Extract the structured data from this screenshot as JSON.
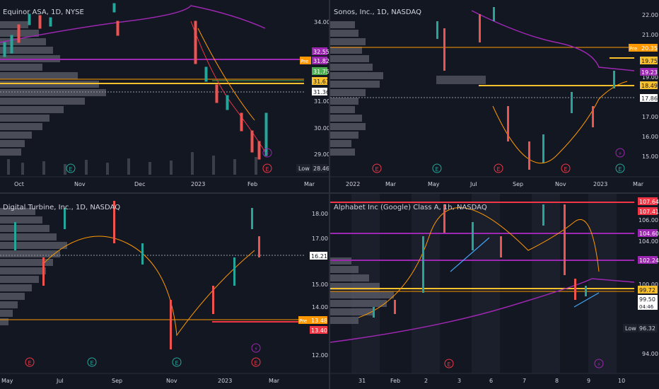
{
  "panes": [
    {
      "title": "Equinor ASA, 1D, NYSE",
      "y_ticks": [
        "34.00",
        "31.00",
        "30.00",
        "29.00"
      ],
      "x_ticks": [
        "Oct",
        "Nov",
        "Dec",
        "2023",
        "Feb",
        "Mar"
      ],
      "price_tags": [
        {
          "text": "32.55",
          "color": "#9c27b0"
        },
        {
          "text": "31.82",
          "color": "#9c27b0",
          "prefix": "Pre"
        },
        {
          "text": "31.75",
          "color": "#4caf50"
        },
        {
          "text": "31.61",
          "color": "#fbc02d"
        },
        {
          "text": "31.36",
          "color": "#ffffff"
        }
      ],
      "low_label": "Low",
      "low_value": "28.46"
    },
    {
      "title": "Sonos, Inc., 1D, NASDAQ",
      "y_ticks": [
        "22.00",
        "21.00",
        "19.00",
        "17.00",
        "16.00",
        "15.00"
      ],
      "x_ticks": [
        "2022",
        "Mar",
        "May",
        "Jul",
        "Sep",
        "Nov",
        "2023",
        "Mar"
      ],
      "price_tags": [
        {
          "text": "20.35",
          "color": "#ff9800",
          "prefix": "Pre"
        },
        {
          "text": "19.75",
          "color": "#fbc02d"
        },
        {
          "text": "19.23",
          "color": "#9c27b0"
        },
        {
          "text": "18.49",
          "color": "#fbc02d"
        },
        {
          "text": "17.86",
          "color": "#ffffff"
        }
      ]
    },
    {
      "title": "Digital Turbine, Inc., 1D, NASDAQ",
      "y_ticks": [
        "18.00",
        "17.00",
        "15.00",
        "14.00",
        "12.00"
      ],
      "x_ticks": [
        "May",
        "Jul",
        "Sep",
        "Nov",
        "2023",
        "Mar"
      ],
      "price_tags": [
        {
          "text": "16.21",
          "color": "#ffffff"
        },
        {
          "text": "13.48",
          "color": "#ff9800",
          "prefix": "Pre"
        },
        {
          "text": "13.40",
          "color": "#f23645"
        }
      ]
    },
    {
      "title": "Alphabet Inc (Google) Class A, 1h, NASDAQ",
      "y_ticks": [
        "106.00",
        "104.00",
        "100.00",
        "94.00"
      ],
      "x_ticks": [
        "31",
        "Feb",
        "2",
        "3",
        "6",
        "7",
        "8",
        "9",
        "10"
      ],
      "price_tags": [
        {
          "text": "107.64",
          "color": "#f23645"
        },
        {
          "text": "107.41",
          "color": "#f23645"
        },
        {
          "text": "104.60",
          "color": "#9c27b0"
        },
        {
          "text": "102.24",
          "color": "#9c27b0"
        },
        {
          "text": "99.72",
          "color": "#fbc02d"
        },
        {
          "text": "99.50",
          "color": "#ffffff"
        },
        {
          "text": "04:46",
          "color": "#ffffff"
        }
      ],
      "low_label": "Low",
      "low_value": "96.32"
    }
  ]
}
